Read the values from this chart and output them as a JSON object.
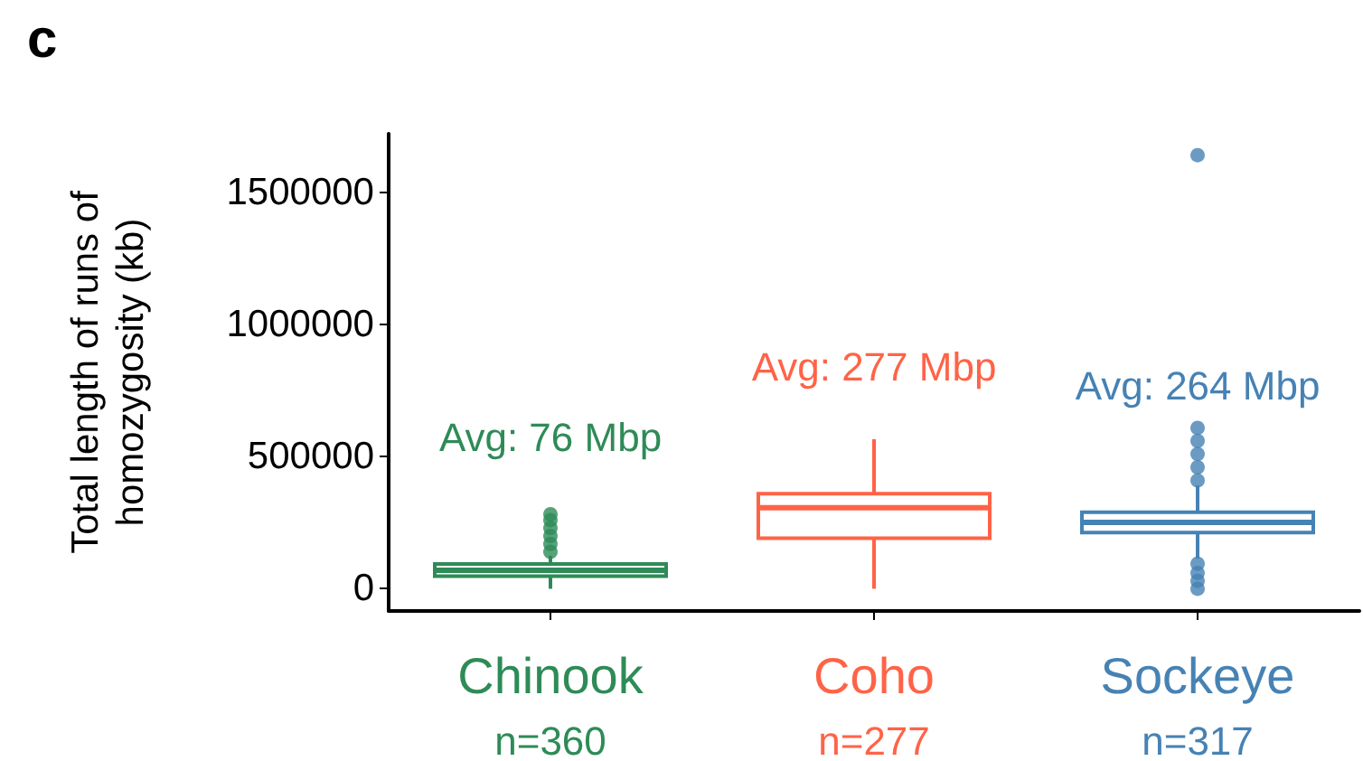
{
  "chart_data": {
    "type": "box",
    "title": "c",
    "ylabel": "Total length of runs of\nhomozygosity (kb)",
    "categories": [
      "Chinook",
      "Coho",
      "Sockeye"
    ],
    "colors": [
      "#2e8b57",
      "#ff6347",
      "#4682b4"
    ],
    "boxes": [
      {
        "low": 0,
        "q1": 48000,
        "median": 70000,
        "q3": 94000,
        "high": 125000,
        "outliers": [
          140000,
          170000,
          200000,
          230000,
          260000,
          282000
        ]
      },
      {
        "low": 0,
        "q1": 191000,
        "median": 307000,
        "q3": 360000,
        "high": 566000
      },
      {
        "low": 114000,
        "q1": 213000,
        "median": 251000,
        "q3": 290000,
        "high": 391000,
        "outliers": [
          0,
          30000,
          60000,
          95000,
          410000,
          460000,
          510000,
          560000,
          609000,
          1641000
        ]
      }
    ],
    "ylim": [
      -84000,
      1722000
    ],
    "yticks": [
      0,
      500000,
      1000000,
      1500000
    ],
    "grid": false,
    "annotations": [
      "Avg: 76 Mbp",
      "Avg: 277 Mbp",
      "Avg: 264 Mbp",
      "n=360",
      "n=277",
      "n=317"
    ]
  }
}
